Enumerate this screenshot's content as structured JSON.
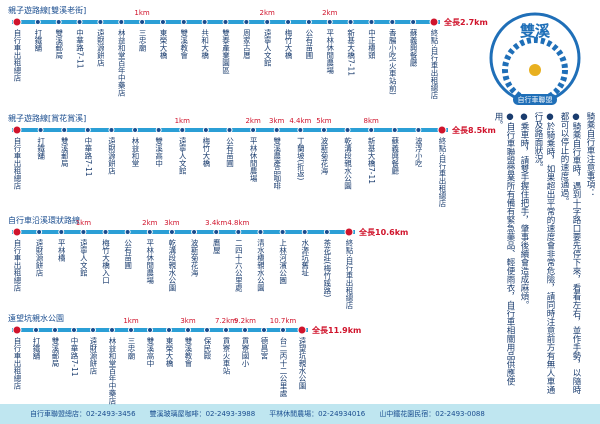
{
  "routes": [
    {
      "title": "親子遊路線[雙溪老街]",
      "total": "全長2.7km",
      "stops": [
        {
          "name": "自行車出租總店"
        },
        {
          "name": "打鐵舖"
        },
        {
          "name": "雙溪郵局"
        },
        {
          "name": "中華路7-11"
        },
        {
          "name": "遠財源餅店"
        },
        {
          "name": "林益和堂百年中藥店"
        },
        {
          "name": "三忠廟",
          "km": "1km"
        },
        {
          "name": "東榮大橋"
        },
        {
          "name": "雙溪教會"
        },
        {
          "name": "共和大橋"
        },
        {
          "name": "雙泰產業園區"
        },
        {
          "name": "周家古厝"
        },
        {
          "name": "遠寧人文館",
          "km": "2km"
        },
        {
          "name": "梅竹大橋"
        },
        {
          "name": "公有苗圃"
        },
        {
          "name": "平林休閒農場",
          "km": "2km"
        },
        {
          "name": "新基大橋7-11"
        },
        {
          "name": "中正橋頭"
        },
        {
          "name": "香腸小吃(火車站前)"
        },
        {
          "name": "蘇義興餐廳"
        },
        {
          "name": "終點:自行車出租總店"
        }
      ]
    },
    {
      "title": "親子遊路線[賞花賞溪]",
      "total": "全長8.5km",
      "stops": [
        {
          "name": "自行車出租總店"
        },
        {
          "name": "打鐵舖"
        },
        {
          "name": "雙溪郵局"
        },
        {
          "name": "中華路7-11"
        },
        {
          "name": "遠財源餅店"
        },
        {
          "name": "林益和堂"
        },
        {
          "name": "雙溪高中"
        },
        {
          "name": "遠寧人文館",
          "km": "1km"
        },
        {
          "name": "梅竹大橋"
        },
        {
          "name": "公有苗圃"
        },
        {
          "name": "平林休閒農場",
          "km": "2km"
        },
        {
          "name": "雙溪農產品咖啡",
          "km": "3km"
        },
        {
          "name": "丁蘭坡(折返)",
          "km": "4.4km"
        },
        {
          "name": "波斯菊花海",
          "km": "5km"
        },
        {
          "name": "乾溝段親水公園"
        },
        {
          "name": "新基大橋7-11",
          "km": "8km"
        },
        {
          "name": "蘇義興餐廳"
        },
        {
          "name": "波浮小吃"
        },
        {
          "name": "終點:自行車出租總店"
        }
      ]
    },
    {
      "title": "自行車沿溪環狀路線",
      "total": "全長10.6km",
      "stops": [
        {
          "name": "自行車出租總店"
        },
        {
          "name": "遠財源餅店"
        },
        {
          "name": "平林橋"
        },
        {
          "name": "遠寧人文館",
          "km": "1km"
        },
        {
          "name": "梅竹大橋入口"
        },
        {
          "name": "公有苗圃"
        },
        {
          "name": "平林休閒農場",
          "km": "2km"
        },
        {
          "name": "乾溝段親水公園",
          "km": "3km"
        },
        {
          "name": "波斯菊花海"
        },
        {
          "name": "鷹屋",
          "km": "3.4km"
        },
        {
          "name": "二四十六公里處",
          "km": "4.8km"
        },
        {
          "name": "清水橋親水公園"
        },
        {
          "name": "上林河濱公園"
        },
        {
          "name": "水源坑舊址"
        },
        {
          "name": "茶花莊(梅竹蹊路)"
        },
        {
          "name": "終點:自行車出租總店"
        }
      ]
    },
    {
      "title": "遠望坑親水公園",
      "total": "全長11.9km",
      "stops": [
        {
          "name": "自行車出租總店"
        },
        {
          "name": "打鐵舖"
        },
        {
          "name": "雙溪郵局"
        },
        {
          "name": "中華路7-11"
        },
        {
          "name": "遠財源餅店"
        },
        {
          "name": "林益和堂百年中藥店"
        },
        {
          "name": "三忠廟",
          "km": "1km"
        },
        {
          "name": "雙溪高中"
        },
        {
          "name": "東榮大橋"
        },
        {
          "name": "雙溪教會",
          "km": "3km"
        },
        {
          "name": "保民殿"
        },
        {
          "name": "貢寮火車站",
          "km": "7.2km"
        },
        {
          "name": "貢寮國小",
          "km": "9.2km"
        },
        {
          "name": "德昌宮"
        },
        {
          "name": "台二丙十二公里處",
          "km": "10.7km"
        },
        {
          "name": "遠望坑親水公園"
        }
      ]
    }
  ],
  "logo": {
    "title": "雙溪",
    "subtitle": "自行車聯盟"
  },
  "notes": [
    "騎乘自行車注意事項：",
    "●騎乘自行車時，遇到十字路口要先停下來，看看左右，並作手勢，以隨時都可以停止的速度通過。",
    "●於騎乘時，如果超出平常的速度會非常危險，請同時注意前方有無人車通行及路面狀況。",
    "●乘車時，請雙手握住把手，肇事後續會造成麻煩。",
    "●自行車聯盟營業所有備有緊急藥品、輕便雨衣，自行車相關用品供應使用。"
  ],
  "footer": [
    "自行車聯盟總店：02-2493-3456",
    "雙溪玻璃屋咖啡：02-2493-3988",
    "平林休閒農場：02-24934016",
    "山中鐵花園民宿：02-2493-0088"
  ]
}
